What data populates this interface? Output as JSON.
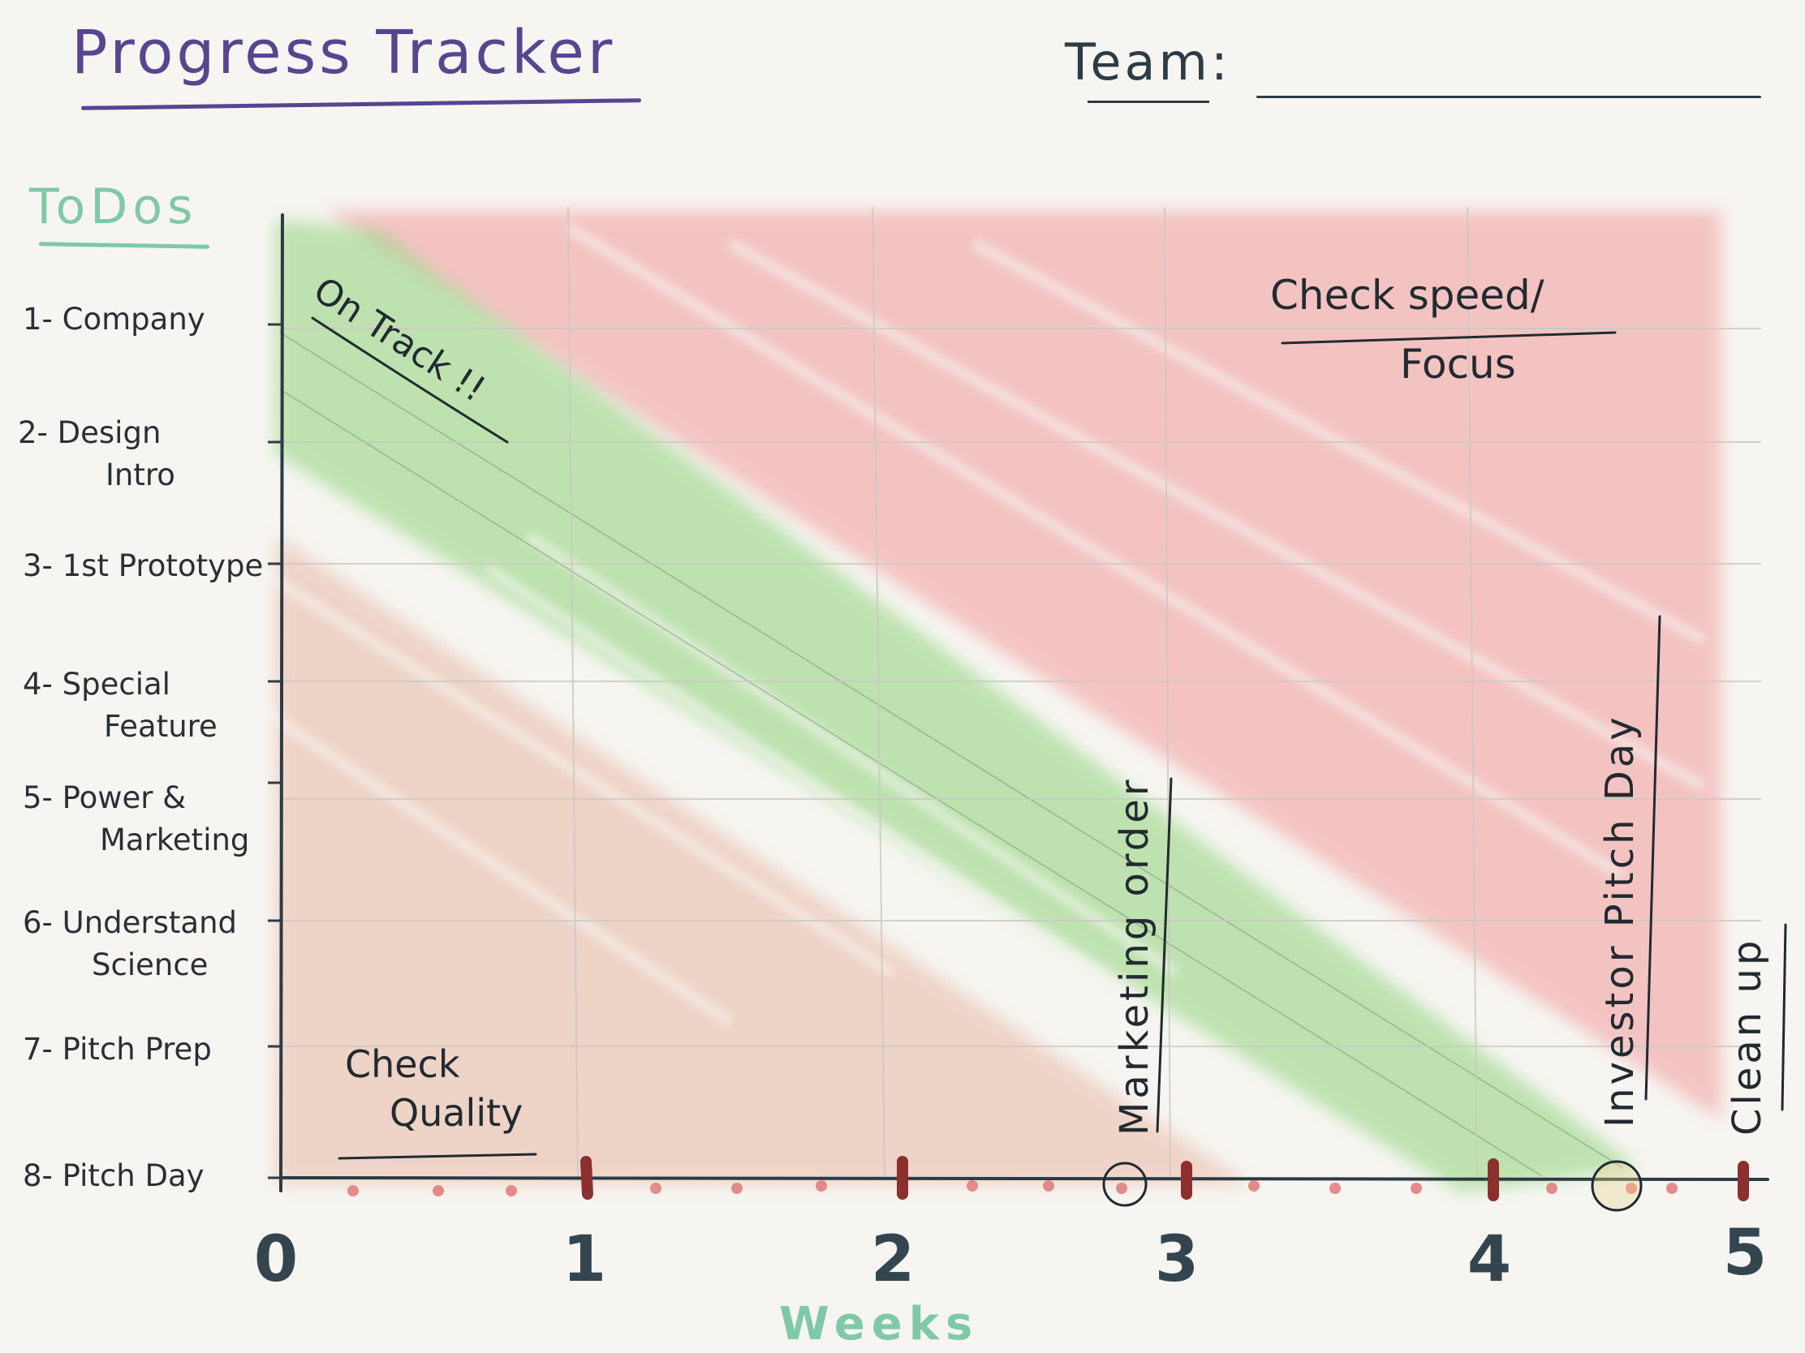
{
  "header": {
    "title": "Progress Tracker",
    "team_label": "Team:"
  },
  "todos": {
    "label": "ToDos",
    "items": [
      {
        "line1": "1- Company",
        "line2": ""
      },
      {
        "line1": "2- Design",
        "line2": "Intro"
      },
      {
        "line1": "3- 1st Prototype",
        "line2": ""
      },
      {
        "line1": "4- Special",
        "line2": "Feature"
      },
      {
        "line1": "5- Power &",
        "line2": "Marketing"
      },
      {
        "line1": "6- Understand",
        "line2": "Science"
      },
      {
        "line1": "7- Pitch Prep",
        "line2": ""
      },
      {
        "line1": "8- Pitch Day",
        "line2": ""
      }
    ]
  },
  "axis": {
    "x_label": "Weeks",
    "week_ticks": [
      "0",
      "1",
      "2",
      "3",
      "4",
      "5"
    ]
  },
  "annotations": {
    "on_track": "On Track !!",
    "check_speed_line1": "Check speed/",
    "check_speed_line2": "Focus",
    "check_quality_line1": "Check",
    "check_quality_line2": "Quality",
    "marketing_order": "Marketing order",
    "investor_pitch_day": "Investor Pitch Day",
    "clean_up": "Clean up"
  },
  "colors": {
    "title": "#57458f",
    "todos": "#7fc9a6",
    "axis": "#2c3b45",
    "green_zone": "#8fd37a",
    "red_zone": "#f2a3a3",
    "brown_zone": "#e9b8a6",
    "tick_marker": "#8b2f2f",
    "dot_marker": "#e07a7a"
  }
}
